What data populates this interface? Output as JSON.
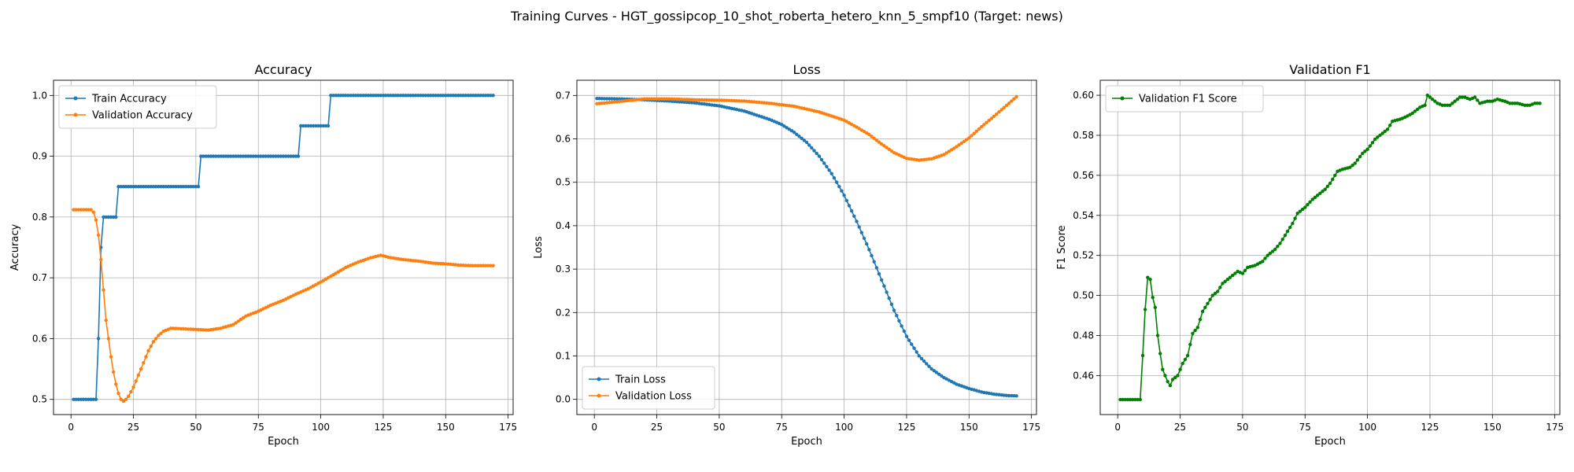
{
  "figure": {
    "title": "Training Curves - HGT_gossipcop_10_shot_roberta_hetero_knn_5_smpf10 (Target: news)"
  },
  "colors": {
    "train": "#1f77b4",
    "val": "#ff7f0e",
    "f1": "#008000",
    "grid": "#b0b0b0"
  },
  "chart_data": [
    {
      "type": "line",
      "title": "Accuracy",
      "xlabel": "Epoch",
      "ylabel": "Accuracy",
      "xlim": [
        -7,
        177
      ],
      "ylim": [
        0.475,
        1.025
      ],
      "xticks": [
        0,
        25,
        50,
        75,
        100,
        125,
        150,
        175
      ],
      "yticks": [
        0.5,
        0.6,
        0.7,
        0.8,
        0.9,
        1.0
      ],
      "ytick_labels": [
        "0.5",
        "0.6",
        "0.7",
        "0.8",
        "0.9",
        "1.0"
      ],
      "grid": true,
      "legend_position": "upper-left",
      "series": [
        {
          "name": "Train Accuracy",
          "color": "#1f77b4",
          "points": [
            [
              1,
              0.5
            ],
            [
              10,
              0.5
            ],
            [
              11,
              0.6
            ],
            [
              12,
              0.75
            ],
            [
              13,
              0.8
            ],
            [
              18,
              0.8
            ],
            [
              19,
              0.85
            ],
            [
              51,
              0.85
            ],
            [
              52,
              0.9
            ],
            [
              91,
              0.9
            ],
            [
              92,
              0.95
            ],
            [
              103,
              0.95
            ],
            [
              104,
              1.0
            ],
            [
              169,
              1.0
            ]
          ]
        },
        {
          "name": "Validation Accuracy",
          "color": "#ff7f0e",
          "points": [
            [
              1,
              0.812
            ],
            [
              8,
              0.812
            ],
            [
              9,
              0.808
            ],
            [
              10,
              0.795
            ],
            [
              11,
              0.77
            ],
            [
              12,
              0.73
            ],
            [
              13,
              0.68
            ],
            [
              14,
              0.63
            ],
            [
              16,
              0.57
            ],
            [
              17,
              0.545
            ],
            [
              18,
              0.525
            ],
            [
              19,
              0.51
            ],
            [
              20,
              0.5
            ],
            [
              21,
              0.497
            ],
            [
              22,
              0.5
            ],
            [
              23,
              0.505
            ],
            [
              25,
              0.52
            ],
            [
              27,
              0.54
            ],
            [
              29,
              0.56
            ],
            [
              31,
              0.58
            ],
            [
              33,
              0.595
            ],
            [
              35,
              0.605
            ],
            [
              37,
              0.612
            ],
            [
              40,
              0.617
            ],
            [
              45,
              0.616
            ],
            [
              50,
              0.615
            ],
            [
              55,
              0.614
            ],
            [
              60,
              0.617
            ],
            [
              65,
              0.623
            ],
            [
              70,
              0.637
            ],
            [
              75,
              0.645
            ],
            [
              80,
              0.655
            ],
            [
              85,
              0.663
            ],
            [
              90,
              0.673
            ],
            [
              95,
              0.682
            ],
            [
              100,
              0.693
            ],
            [
              105,
              0.705
            ],
            [
              110,
              0.717
            ],
            [
              115,
              0.726
            ],
            [
              120,
              0.733
            ],
            [
              124,
              0.737
            ],
            [
              128,
              0.733
            ],
            [
              133,
              0.73
            ],
            [
              140,
              0.727
            ],
            [
              145,
              0.724
            ],
            [
              150,
              0.723
            ],
            [
              155,
              0.721
            ],
            [
              160,
              0.72
            ],
            [
              169,
              0.72
            ]
          ]
        }
      ]
    },
    {
      "type": "line",
      "title": "Loss",
      "xlabel": "Epoch",
      "ylabel": "Loss",
      "xlim": [
        -7,
        177
      ],
      "ylim": [
        -0.035,
        0.735
      ],
      "xticks": [
        0,
        25,
        50,
        75,
        100,
        125,
        150,
        175
      ],
      "yticks": [
        0.0,
        0.1,
        0.2,
        0.3,
        0.4,
        0.5,
        0.6,
        0.7
      ],
      "ytick_labels": [
        "0.0",
        "0.1",
        "0.2",
        "0.3",
        "0.4",
        "0.5",
        "0.6",
        "0.7"
      ],
      "grid": true,
      "legend_position": "lower-left",
      "series": [
        {
          "name": "Train Loss",
          "color": "#1f77b4",
          "points": [
            [
              1,
              0.693
            ],
            [
              10,
              0.692
            ],
            [
              20,
              0.69
            ],
            [
              30,
              0.687
            ],
            [
              40,
              0.683
            ],
            [
              50,
              0.676
            ],
            [
              60,
              0.664
            ],
            [
              70,
              0.645
            ],
            [
              75,
              0.633
            ],
            [
              80,
              0.615
            ],
            [
              85,
              0.592
            ],
            [
              90,
              0.56
            ],
            [
              95,
              0.52
            ],
            [
              100,
              0.47
            ],
            [
              105,
              0.41
            ],
            [
              110,
              0.345
            ],
            [
              115,
              0.275
            ],
            [
              120,
              0.205
            ],
            [
              125,
              0.145
            ],
            [
              130,
              0.1
            ],
            [
              135,
              0.07
            ],
            [
              140,
              0.05
            ],
            [
              145,
              0.035
            ],
            [
              150,
              0.025
            ],
            [
              155,
              0.017
            ],
            [
              160,
              0.012
            ],
            [
              165,
              0.009
            ],
            [
              169,
              0.008
            ]
          ]
        },
        {
          "name": "Validation Loss",
          "color": "#ff7f0e",
          "points": [
            [
              1,
              0.681
            ],
            [
              10,
              0.686
            ],
            [
              20,
              0.692
            ],
            [
              30,
              0.692
            ],
            [
              40,
              0.69
            ],
            [
              50,
              0.689
            ],
            [
              60,
              0.687
            ],
            [
              70,
              0.682
            ],
            [
              80,
              0.675
            ],
            [
              90,
              0.662
            ],
            [
              100,
              0.643
            ],
            [
              105,
              0.627
            ],
            [
              110,
              0.61
            ],
            [
              115,
              0.588
            ],
            [
              120,
              0.568
            ],
            [
              125,
              0.555
            ],
            [
              130,
              0.551
            ],
            [
              135,
              0.554
            ],
            [
              140,
              0.564
            ],
            [
              145,
              0.582
            ],
            [
              150,
              0.602
            ],
            [
              155,
              0.628
            ],
            [
              160,
              0.652
            ],
            [
              165,
              0.677
            ],
            [
              169,
              0.697
            ]
          ]
        }
      ]
    },
    {
      "type": "line",
      "title": "Validation F1",
      "xlabel": "Epoch",
      "ylabel": "F1 Score",
      "xlim": [
        -7,
        177
      ],
      "ylim": [
        0.4405,
        0.6075
      ],
      "xticks": [
        0,
        25,
        50,
        75,
        100,
        125,
        150,
        175
      ],
      "yticks": [
        0.46,
        0.48,
        0.5,
        0.52,
        0.54,
        0.56,
        0.58,
        0.6
      ],
      "ytick_labels": [
        "0.46",
        "0.48",
        "0.50",
        "0.52",
        "0.54",
        "0.56",
        "0.58",
        "0.60"
      ],
      "grid": true,
      "legend_position": "upper-left",
      "series": [
        {
          "name": "Validation F1 Score",
          "color": "#008000",
          "points": [
            [
              1,
              0.448
            ],
            [
              9,
              0.448
            ],
            [
              10,
              0.47
            ],
            [
              11,
              0.493
            ],
            [
              12,
              0.509
            ],
            [
              13,
              0.508
            ],
            [
              14,
              0.499
            ],
            [
              15,
              0.494
            ],
            [
              16,
              0.48
            ],
            [
              17,
              0.471
            ],
            [
              18,
              0.463
            ],
            [
              19,
              0.46
            ],
            [
              20,
              0.457
            ],
            [
              21,
              0.455
            ],
            [
              22,
              0.458
            ],
            [
              24,
              0.46
            ],
            [
              26,
              0.466
            ],
            [
              28,
              0.47
            ],
            [
              30,
              0.481
            ],
            [
              32,
              0.484
            ],
            [
              34,
              0.492
            ],
            [
              36,
              0.496
            ],
            [
              38,
              0.5
            ],
            [
              40,
              0.502
            ],
            [
              42,
              0.506
            ],
            [
              45,
              0.509
            ],
            [
              48,
              0.512
            ],
            [
              50,
              0.511
            ],
            [
              52,
              0.514
            ],
            [
              55,
              0.515
            ],
            [
              58,
              0.517
            ],
            [
              60,
              0.52
            ],
            [
              63,
              0.523
            ],
            [
              65,
              0.526
            ],
            [
              68,
              0.532
            ],
            [
              70,
              0.536
            ],
            [
              72,
              0.541
            ],
            [
              75,
              0.544
            ],
            [
              78,
              0.548
            ],
            [
              80,
              0.55
            ],
            [
              83,
              0.553
            ],
            [
              85,
              0.556
            ],
            [
              88,
              0.562
            ],
            [
              90,
              0.563
            ],
            [
              93,
              0.564
            ],
            [
              95,
              0.566
            ],
            [
              98,
              0.571
            ],
            [
              100,
              0.573
            ],
            [
              103,
              0.578
            ],
            [
              105,
              0.58
            ],
            [
              108,
              0.583
            ],
            [
              110,
              0.587
            ],
            [
              113,
              0.588
            ],
            [
              115,
              0.589
            ],
            [
              118,
              0.591
            ],
            [
              121,
              0.594
            ],
            [
              123,
              0.595
            ],
            [
              124,
              0.6
            ],
            [
              125,
              0.599
            ],
            [
              126,
              0.598
            ],
            [
              128,
              0.596
            ],
            [
              130,
              0.595
            ],
            [
              133,
              0.595
            ],
            [
              135,
              0.597
            ],
            [
              137,
              0.599
            ],
            [
              139,
              0.599
            ],
            [
              141,
              0.598
            ],
            [
              143,
              0.599
            ],
            [
              145,
              0.596
            ],
            [
              148,
              0.597
            ],
            [
              150,
              0.597
            ],
            [
              152,
              0.598
            ],
            [
              155,
              0.597
            ],
            [
              157,
              0.596
            ],
            [
              160,
              0.596
            ],
            [
              163,
              0.595
            ],
            [
              165,
              0.595
            ],
            [
              167,
              0.596
            ],
            [
              169,
              0.596
            ]
          ]
        }
      ]
    }
  ]
}
